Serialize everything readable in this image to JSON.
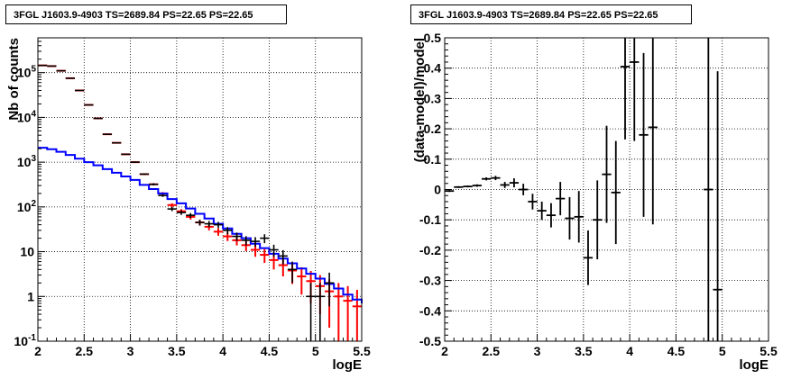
{
  "chart_data": [
    {
      "type": "line",
      "title": "3FGL J1603.9-4903 TS=2689.84 PS=22.65 PS=22.65",
      "xlabel": "logE",
      "ylabel": "Nb of counts",
      "xlim": [
        2,
        5.5
      ],
      "ylim": [
        0.1,
        600000
      ],
      "yscale": "log",
      "grid": true,
      "xticks": [
        "2",
        "2.5",
        "3",
        "3.5",
        "4",
        "4.5",
        "5",
        "5.5"
      ],
      "yticks": [
        {
          "v": 0.1,
          "label": "10^-1"
        },
        {
          "v": 1,
          "label": "1"
        },
        {
          "v": 10,
          "label": "10"
        },
        {
          "v": 100,
          "label": "10^2"
        },
        {
          "v": 1000,
          "label": "10^3"
        },
        {
          "v": 10000,
          "label": "10^4"
        },
        {
          "v": 100000,
          "label": "10^5"
        }
      ],
      "series": [
        {
          "role": "data",
          "color": "#000000",
          "x": [
            2.05,
            2.15,
            2.25,
            2.35,
            2.45,
            2.55,
            2.65,
            2.75,
            2.85,
            2.95,
            3.05,
            3.15,
            3.25,
            3.35,
            3.45,
            3.55,
            3.65,
            3.75,
            3.85,
            3.95,
            4.05,
            4.15,
            4.25,
            4.35,
            4.45,
            4.55,
            4.65,
            4.75,
            4.85,
            4.95,
            5.05,
            5.15,
            5.25,
            5.35,
            5.45
          ],
          "y": [
            145000,
            140000,
            110000,
            75000,
            40000,
            19000,
            9500,
            4200,
            2700,
            1500,
            1000,
            540,
            320,
            180,
            90,
            75,
            65,
            45,
            42,
            40,
            30,
            22,
            18,
            17,
            20,
            11,
            8,
            4,
            0,
            1,
            1,
            2,
            0,
            0,
            0
          ],
          "yerr": [
            400,
            380,
            330,
            280,
            200,
            140,
            100,
            65,
            52,
            39,
            32,
            23,
            18,
            13,
            9.5,
            8.7,
            8,
            6.7,
            6.5,
            6.3,
            5.5,
            4.7,
            4.2,
            4.1,
            4.5,
            3.3,
            2.8,
            2,
            0,
            1,
            1,
            1.4,
            0,
            0,
            0
          ]
        },
        {
          "role": "total model",
          "color": "#ff0000",
          "x": [
            2.05,
            2.15,
            2.25,
            2.35,
            2.45,
            2.55,
            2.65,
            2.75,
            2.85,
            2.95,
            3.05,
            3.15,
            3.25,
            3.35,
            3.45,
            3.55,
            3.65,
            3.75,
            3.85,
            3.95,
            4.05,
            4.15,
            4.25,
            4.35,
            4.45,
            4.55,
            4.65,
            4.75,
            4.85,
            4.95,
            5.05,
            5.15,
            5.25,
            5.35,
            5.45
          ],
          "y": [
            145000,
            140000,
            110000,
            75000,
            40000,
            19000,
            9500,
            4200,
            2700,
            1500,
            1000,
            540,
            320,
            200,
            110,
            80,
            60,
            45,
            36,
            28,
            22,
            18,
            14,
            11,
            8.5,
            6.5,
            5,
            3.8,
            2.8,
            2.2,
            1.7,
            1.3,
            1,
            0.8,
            0.6
          ],
          "yerr": [
            381,
            374,
            332,
            274,
            200,
            138,
            97,
            65,
            52,
            39,
            32,
            23,
            18,
            14,
            10.5,
            9,
            7.7,
            6.7,
            6,
            5.3,
            4.7,
            4.2,
            3.7,
            3.3,
            2.9,
            2.5,
            2.2,
            1.9,
            1.7,
            1.5,
            1.3,
            1.1,
            1,
            0.9,
            0.8
          ]
        },
        {
          "role": "source model",
          "color": "#0000ff",
          "x": [
            2.0,
            2.1,
            2.2,
            2.3,
            2.4,
            2.5,
            2.6,
            2.7,
            2.8,
            2.9,
            3.0,
            3.1,
            3.2,
            3.3,
            3.4,
            3.5,
            3.6,
            3.7,
            3.8,
            3.9,
            4.0,
            4.1,
            4.2,
            4.3,
            4.4,
            4.5,
            4.6,
            4.7,
            4.8,
            4.9,
            5.0,
            5.1,
            5.2,
            5.3,
            5.4,
            5.5
          ],
          "y": [
            2100,
            1950,
            1700,
            1450,
            1200,
            1000,
            850,
            700,
            580,
            480,
            400,
            310,
            250,
            200,
            150,
            120,
            92,
            70,
            55,
            42,
            33,
            25,
            20,
            15,
            12,
            9,
            7,
            5.5,
            4.2,
            3.2,
            2.5,
            1.9,
            1.5,
            1.1,
            0.85,
            0.7
          ]
        }
      ]
    },
    {
      "type": "scatter",
      "title": "3FGL J1603.9-4903 TS=2689.84 PS=22.65 PS=22.65",
      "xlabel": "logE",
      "ylabel": "(data-model)/model",
      "xlim": [
        2,
        5.5
      ],
      "ylim": [
        -0.5,
        0.5
      ],
      "grid": true,
      "xticks": [
        "2",
        "2.5",
        "3",
        "3.5",
        "4",
        "4.5",
        "5",
        "5.5"
      ],
      "yticks": [
        "-0.5",
        "-0.4",
        "-0.3",
        "-0.2",
        "-0.1",
        "0",
        "0.1",
        "0.2",
        "0.3",
        "0.4",
        "0.5"
      ],
      "series": [
        {
          "role": "residual",
          "color": "#000000",
          "points": [
            {
              "x": 2.05,
              "y": -0.005,
              "yerr": 0.003
            },
            {
              "x": 2.15,
              "y": 0.008,
              "yerr": 0.003
            },
            {
              "x": 2.25,
              "y": 0.01,
              "yerr": 0.003
            },
            {
              "x": 2.35,
              "y": 0.013,
              "yerr": 0.004
            },
            {
              "x": 2.45,
              "y": 0.035,
              "yerr": 0.005
            },
            {
              "x": 2.55,
              "y": 0.038,
              "yerr": 0.007
            },
            {
              "x": 2.65,
              "y": 0.015,
              "yerr": 0.01
            },
            {
              "x": 2.75,
              "y": 0.022,
              "yerr": 0.015
            },
            {
              "x": 2.85,
              "y": 0.0,
              "yerr": 0.019
            },
            {
              "x": 2.95,
              "y": -0.04,
              "yerr": 0.026
            },
            {
              "x": 3.05,
              "y": -0.07,
              "yerr": 0.03
            },
            {
              "x": 3.15,
              "y": -0.085,
              "yerr": 0.04
            },
            {
              "x": 3.25,
              "y": -0.03,
              "yerr": 0.055
            },
            {
              "x": 3.35,
              "y": -0.095,
              "yerr": 0.07
            },
            {
              "x": 3.45,
              "y": -0.09,
              "yerr": 0.085
            },
            {
              "x": 3.55,
              "y": -0.225,
              "yerr": 0.09
            },
            {
              "x": 3.65,
              "y": -0.1,
              "yerr": 0.13
            },
            {
              "x": 3.75,
              "y": 0.05,
              "yerr": 0.16
            },
            {
              "x": 3.85,
              "y": -0.01,
              "yerr": 0.17
            },
            {
              "x": 3.95,
              "y": 0.405,
              "yerr": 0.24
            },
            {
              "x": 4.05,
              "y": 0.42,
              "yerr": 0.26
            },
            {
              "x": 4.15,
              "y": 0.18,
              "yerr": 0.27
            },
            {
              "x": 4.25,
              "y": 0.205,
              "yerr": 0.32
            },
            {
              "x": 4.85,
              "y": 0.0,
              "yerr": 0.9
            },
            {
              "x": 4.95,
              "y": -0.33,
              "yerr": 0.72
            }
          ]
        }
      ]
    }
  ]
}
